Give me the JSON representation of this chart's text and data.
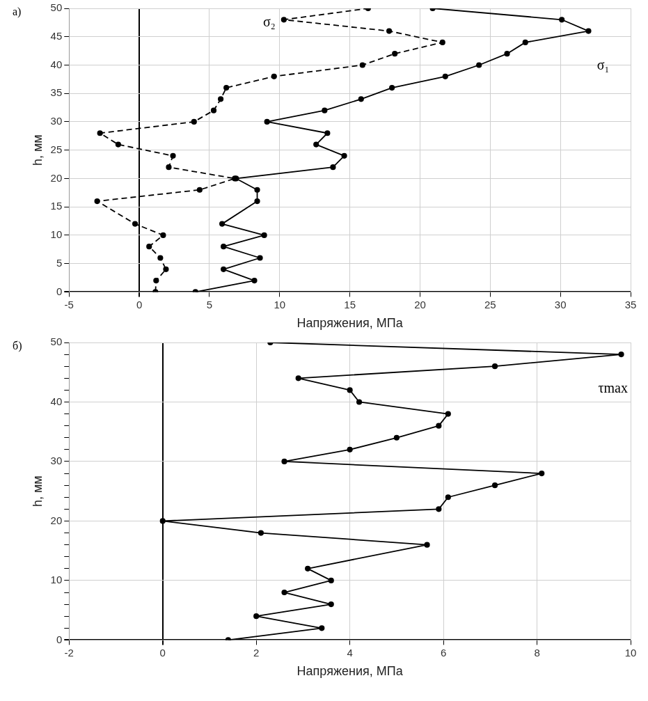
{
  "chart_data": [
    {
      "type": "line",
      "annotations": [
        "а)"
      ],
      "xlabel": "Напряжения, МПа",
      "ylabel": "h, мм",
      "xlim": [
        -5,
        35
      ],
      "xticks": [
        -5,
        0,
        5,
        10,
        15,
        20,
        25,
        30,
        35
      ],
      "ylim": [
        0,
        50
      ],
      "yticks": [
        0,
        5,
        10,
        15,
        20,
        25,
        30,
        35,
        40,
        45,
        50
      ],
      "grid": true,
      "legend": false,
      "marker": "circle",
      "series": [
        {
          "name": "σ₁",
          "color": "#000000",
          "line_style": "solid",
          "x": [
            4.0,
            8.2,
            6.0,
            8.6,
            6.0,
            8.9,
            5.9,
            8.4,
            8.4,
            6.9,
            13.8,
            14.6,
            12.6,
            13.4,
            9.1,
            13.2,
            15.8,
            18.0,
            21.8,
            24.2,
            26.2,
            27.5,
            32.0,
            30.1,
            20.9
          ],
          "values": [
            0,
            2,
            4,
            6,
            8,
            10,
            12,
            16,
            18,
            20,
            22,
            24,
            26,
            28,
            30,
            32,
            34,
            36,
            38,
            40,
            42,
            44,
            46,
            48,
            50
          ]
        },
        {
          "name": "σ₂",
          "color": "#000000",
          "line_style": "dashed",
          "x": [
            1.15,
            1.2,
            1.9,
            1.5,
            0.7,
            1.7,
            -0.3,
            -3.0,
            4.3,
            6.8,
            2.1,
            2.4,
            -1.5,
            -2.8,
            3.9,
            5.3,
            5.8,
            6.2,
            9.6,
            15.9,
            18.2,
            21.6,
            17.8,
            10.3,
            16.3
          ],
          "values": [
            0,
            2,
            4,
            6,
            8,
            10,
            12,
            16,
            18,
            20,
            22,
            24,
            26,
            28,
            30,
            32,
            34,
            36,
            38,
            40,
            42,
            44,
            46,
            48,
            50
          ]
        }
      ]
    },
    {
      "type": "line",
      "annotations": [
        "б)"
      ],
      "xlabel": "Напряжения, МПа",
      "ylabel": "h, мм",
      "xlim": [
        -2,
        10
      ],
      "xticks": [
        -2,
        0,
        2,
        4,
        6,
        8,
        10
      ],
      "ylim": [
        0,
        50
      ],
      "yticks": [
        0,
        {
          "value": 2,
          "label": null
        },
        {
          "value": 4,
          "label": null
        },
        {
          "value": 6,
          "label": null
        },
        {
          "value": 8,
          "label": null
        },
        10,
        {
          "value": 12,
          "label": null
        },
        {
          "value": 14,
          "label": null
        },
        {
          "value": 16,
          "label": null
        },
        {
          "value": 18,
          "label": null
        },
        20,
        {
          "value": 22,
          "label": null
        },
        {
          "value": 24,
          "label": null
        },
        {
          "value": 26,
          "label": null
        },
        {
          "value": 28,
          "label": null
        },
        30,
        {
          "value": 32,
          "label": null
        },
        {
          "value": 34,
          "label": null
        },
        {
          "value": 36,
          "label": null
        },
        {
          "value": 38,
          "label": null
        },
        40,
        {
          "value": 42,
          "label": null
        },
        {
          "value": 44,
          "label": null
        },
        {
          "value": 46,
          "label": null
        },
        {
          "value": 48,
          "label": null
        },
        50
      ],
      "grid": true,
      "legend": false,
      "marker": "circle",
      "series": [
        {
          "name": "τmax",
          "color": "#000000",
          "line_style": "solid",
          "x": [
            1.4,
            3.4,
            2.0,
            3.6,
            2.6,
            3.6,
            3.1,
            5.65,
            2.1,
            0,
            5.9,
            6.1,
            7.1,
            8.1,
            2.6,
            4.0,
            5.0,
            5.9,
            6.1,
            4.2,
            4.0,
            2.9,
            7.1,
            9.8,
            2.3
          ],
          "values": [
            0,
            2,
            4,
            6,
            8,
            10,
            12,
            16,
            18,
            20,
            22,
            24,
            26,
            28,
            30,
            32,
            34,
            36,
            38,
            40,
            42,
            44,
            46,
            48,
            50
          ]
        }
      ]
    }
  ]
}
